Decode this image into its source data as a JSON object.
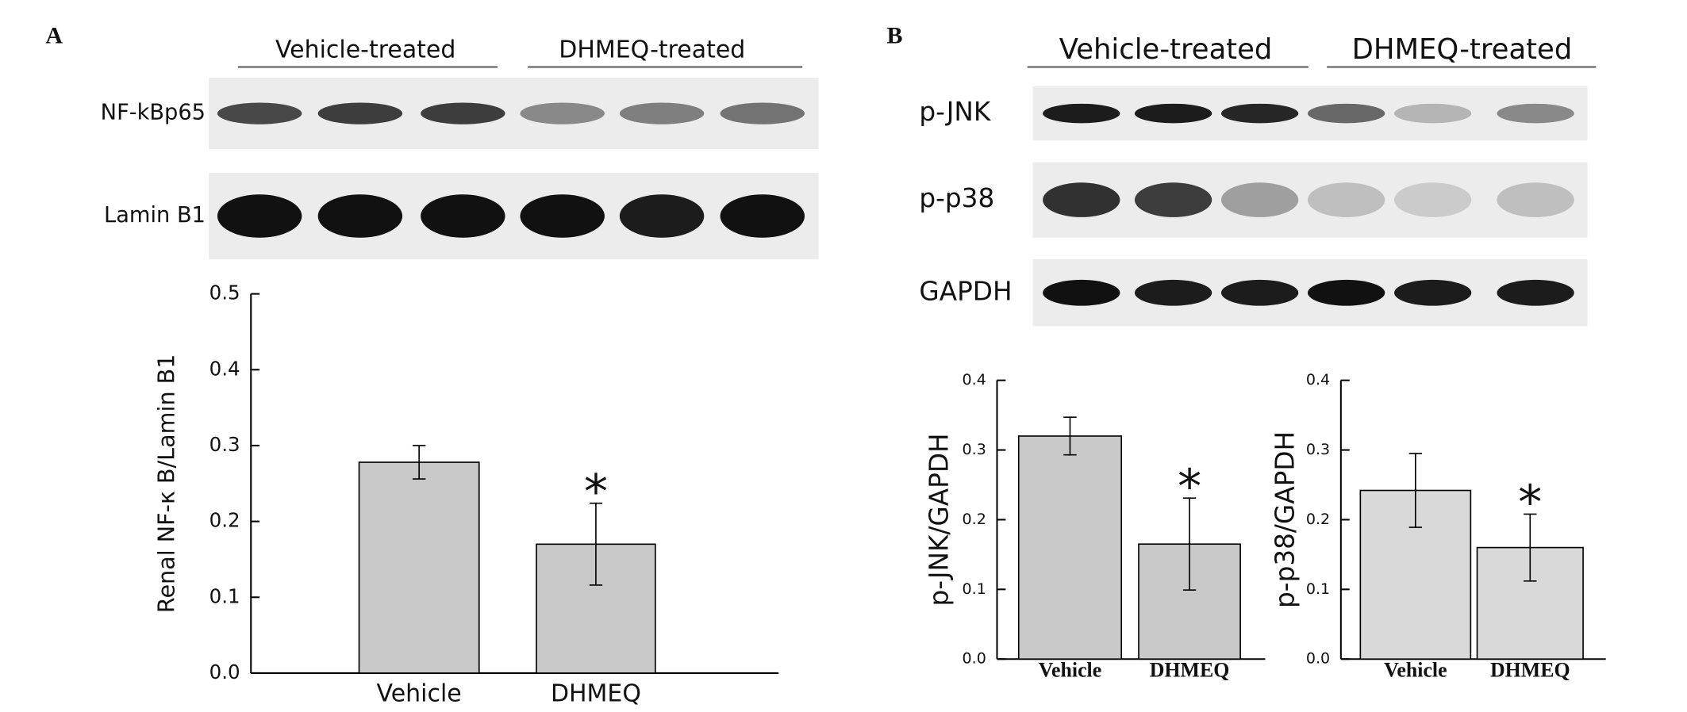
{
  "panel_labels": [
    "A",
    "B"
  ],
  "blots": [
    {
      "groups": [
        "Vehicle-treated",
        "DHMEQ-treated"
      ],
      "rows": [
        "NF-kBp65",
        "Lamin B1"
      ]
    },
    {
      "groups": [
        "Vehicle-treated",
        "DHMEQ-treated"
      ],
      "rows": [
        "p-JNK",
        "p-p38",
        "GAPDH"
      ]
    }
  ],
  "chart_data": [
    {
      "type": "bar",
      "y_label": "Renal NF-κ B/Lamin B1",
      "categories": [
        "Vehicle",
        "DHMEQ"
      ],
      "values": [
        0.278,
        0.17
      ],
      "errors": [
        0.022,
        0.054
      ],
      "significance": [
        null,
        "*"
      ],
      "color": "#c8c8c8",
      "ylim": [
        0,
        0.5
      ],
      "yticks": [
        {
          "value": 0,
          "label": "0.0"
        },
        0.1,
        0.2,
        0.3,
        0.4,
        0.5
      ]
    },
    {
      "type": "bar",
      "y_label": "p-JNK/GAPDH",
      "categories": [
        "Vehicle",
        "DHMEQ"
      ],
      "values": [
        0.32,
        0.165
      ],
      "errors": [
        0.027,
        0.066
      ],
      "significance": [
        null,
        "*"
      ],
      "color": "#c8c8c8",
      "ylim": [
        0,
        0.4
      ],
      "yticks": [
        {
          "value": 0,
          "label": "0.0"
        },
        0.1,
        0.2,
        0.3,
        0.4
      ]
    },
    {
      "type": "bar",
      "y_label": "p-p38/GAPDH",
      "categories": [
        "Vehicle",
        "DHMEQ"
      ],
      "values": [
        0.242,
        0.16
      ],
      "errors": [
        0.053,
        0.048
      ],
      "significance": [
        null,
        "*"
      ],
      "color": "#d9d9d9",
      "ylim": [
        0,
        0.4
      ],
      "yticks": [
        {
          "value": 0,
          "label": "0.0"
        },
        0.1,
        0.2,
        0.3,
        0.4
      ]
    }
  ]
}
